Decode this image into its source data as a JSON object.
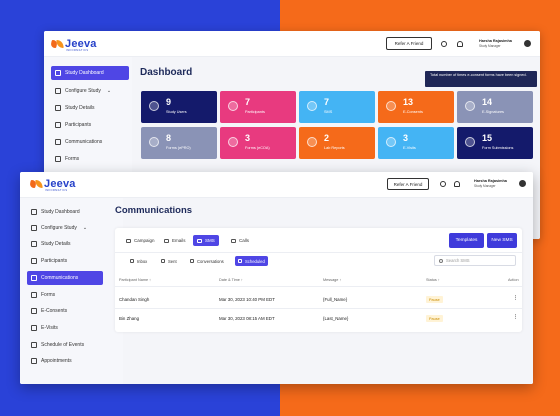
{
  "brand": {
    "name": "Jeeva",
    "tagline": "INFORMATICS"
  },
  "header": {
    "refer_label": "Refer A Friend",
    "user_name": "Harsha Rajasimha",
    "user_role": "Study Manager"
  },
  "back": {
    "page_title": "Dashboard",
    "sidebar": [
      {
        "label": "Study Dashboard",
        "icon": "bar-chart-icon"
      },
      {
        "label": "Configure Study",
        "icon": "gear-icon"
      },
      {
        "label": "Study Details",
        "icon": "list-icon"
      },
      {
        "label": "Participants",
        "icon": "users-icon"
      },
      {
        "label": "Communications",
        "icon": "chat-icon"
      },
      {
        "label": "Forms",
        "icon": "form-icon"
      }
    ],
    "cards": [
      {
        "value": "9",
        "label": "Study Users",
        "color": "#141a6b"
      },
      {
        "value": "7",
        "label": "Participants",
        "color": "#e83a7f"
      },
      {
        "value": "7",
        "label": "SMS",
        "color": "#44b4f4"
      },
      {
        "value": "13",
        "label": "E-Consents",
        "color": "#f56a1a"
      },
      {
        "value": "14",
        "label": "E-Signatures",
        "color": "#8a93b6"
      },
      {
        "value": "8",
        "label": "Forms (ePRO)",
        "color": "#8a93b6"
      },
      {
        "value": "3",
        "label": "Forms (eCOA)",
        "color": "#e83a7f"
      },
      {
        "value": "2",
        "label": "Lab Reports",
        "color": "#f56a1a"
      },
      {
        "value": "3",
        "label": "E-Visits",
        "color": "#44b4f4"
      },
      {
        "value": "15",
        "label": "Form Submissions",
        "color": "#141a6b"
      }
    ],
    "tooltip": "Total number of times e-consent forms have been signed."
  },
  "front": {
    "page_title": "Communications",
    "sidebar": [
      {
        "label": "Study Dashboard"
      },
      {
        "label": "Configure Study"
      },
      {
        "label": "Study Details"
      },
      {
        "label": "Participants"
      },
      {
        "label": "Communications"
      },
      {
        "label": "Forms"
      },
      {
        "label": "E-Consents"
      },
      {
        "label": "E-Visits"
      },
      {
        "label": "Schedule of Events"
      },
      {
        "label": "Appointments"
      }
    ],
    "tabs": [
      "Campaign",
      "Emails",
      "SMS",
      "Calls"
    ],
    "buttons": {
      "templates": "Templates",
      "new_sms": "New SMS"
    },
    "subtabs": [
      "Inbox",
      "Sent",
      "Conversations",
      "Scheduled"
    ],
    "search_placeholder": "Search SMS",
    "columns": [
      "Participant Name ↑",
      "Date & Time ↑",
      "Message ↑",
      "Status ↑",
      "Action"
    ],
    "rows": [
      {
        "name": "Chandan Singh",
        "datetime": "Mar 30, 2023 10:40 PM EDT",
        "message": "{Full_Name}",
        "status": "Pause",
        "action": "⋮"
      },
      {
        "name": "Bin Zhang",
        "datetime": "Mar 30, 2023 08:15 AM EDT",
        "message": "{Last_Name}",
        "status": "Pause",
        "action": "⋮"
      }
    ]
  }
}
